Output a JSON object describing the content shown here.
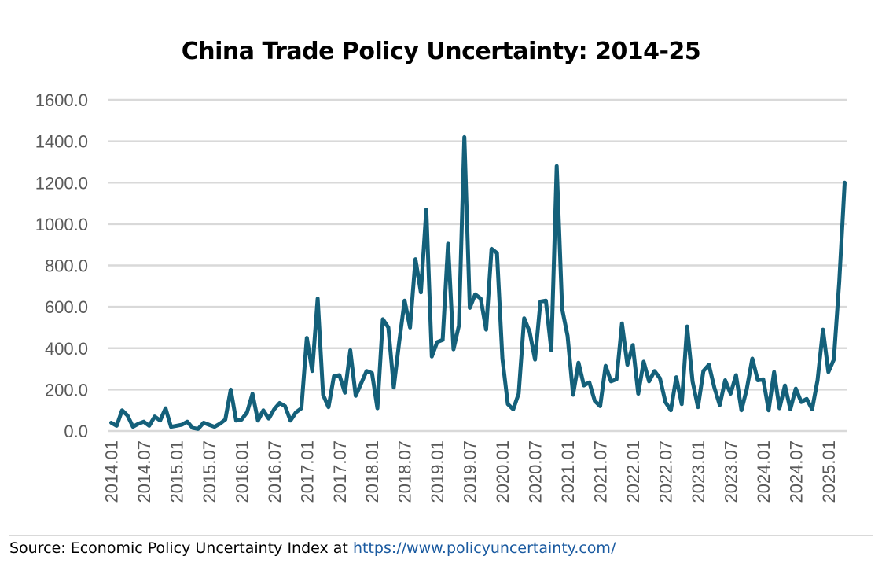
{
  "chart_data": {
    "type": "line",
    "title": "China Trade Policy Uncertainty: 2014-25",
    "xlabel": "",
    "ylabel": "",
    "ylim": [
      0,
      1600
    ],
    "yticks": [
      "0.0",
      "200.0",
      "400.0",
      "600.0",
      "800.0",
      "1000.0",
      "1200.0",
      "1400.0",
      "1600.0"
    ],
    "xtick_labels": [
      "2014.01",
      "2014.07",
      "2015.01",
      "2015.07",
      "2016.01",
      "2016.07",
      "2017.01",
      "2017.07",
      "2018.01",
      "2018.07",
      "2019.01",
      "2019.07",
      "2020.01",
      "2020.07",
      "2021.01",
      "2021.07",
      "2022.01",
      "2022.07",
      "2023.01",
      "2023.07",
      "2024.01",
      "2024.07",
      "2025.01"
    ],
    "grid": true,
    "line_color": "#14607a",
    "series": [
      {
        "values": [
          40,
          25,
          100,
          75,
          20,
          35,
          45,
          25,
          70,
          50,
          110,
          20,
          25,
          30,
          45,
          15,
          10,
          40,
          30,
          20,
          35,
          55,
          200,
          50,
          55,
          90,
          180,
          50,
          100,
          60,
          105,
          135,
          120,
          50,
          90,
          110,
          450,
          290,
          640,
          175,
          115,
          265,
          270,
          185,
          390,
          170,
          230,
          290,
          280,
          110,
          540,
          500,
          210,
          430,
          630,
          500,
          830,
          670,
          1070,
          360,
          430,
          440,
          905,
          395,
          510,
          1420,
          595,
          660,
          640,
          490,
          880,
          860,
          350,
          130,
          105,
          180,
          545,
          480,
          345,
          625,
          630,
          390,
          1280,
          590,
          460,
          175,
          330,
          220,
          235,
          145,
          120,
          315,
          240,
          250,
          520,
          320,
          415,
          180,
          335,
          240,
          290,
          255,
          140,
          100,
          260,
          130,
          505,
          240,
          115,
          290,
          320,
          210,
          125,
          245,
          180,
          270,
          100,
          205,
          350,
          245,
          250,
          100,
          285,
          110,
          220,
          105,
          205,
          140,
          155,
          105,
          245,
          490,
          285,
          345,
          720,
          1200
        ]
      }
    ]
  },
  "source": {
    "prefix": "Source: Economic Policy Uncertainty Index at ",
    "link": "https://www.policyuncertainty.com/"
  }
}
